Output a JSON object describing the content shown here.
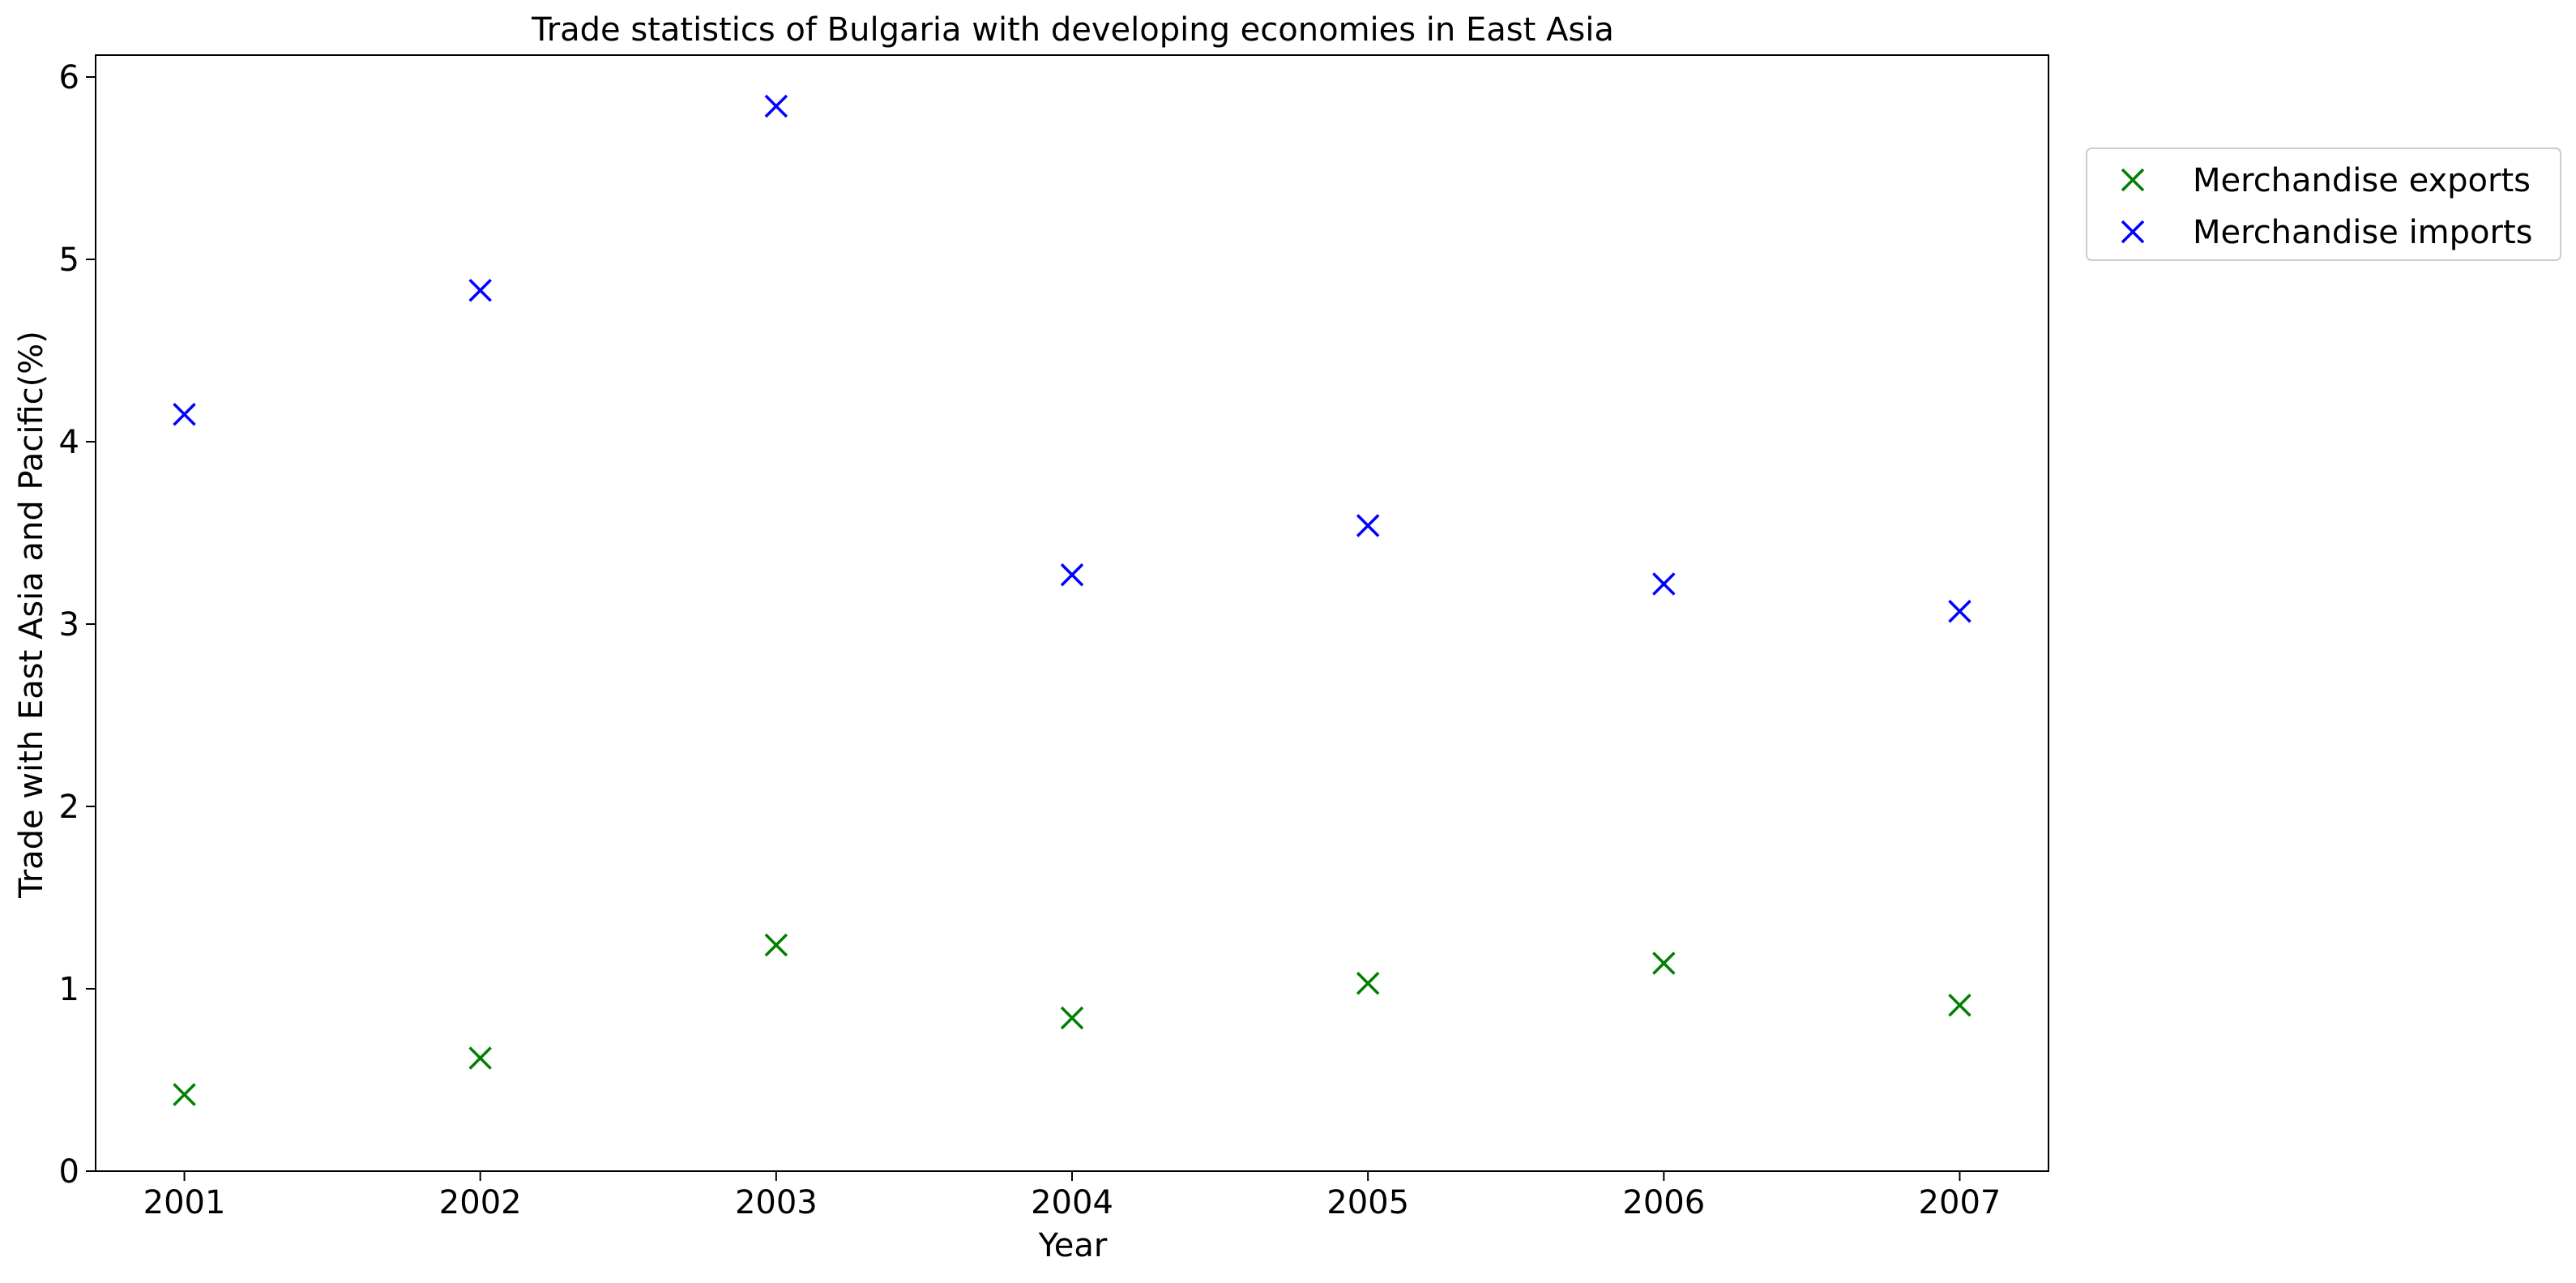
{
  "chart_data": {
    "type": "scatter",
    "title": "Trade statistics of Bulgaria with developing economies in East Asia",
    "xlabel": "Year",
    "ylabel": "Trade with East Asia and Pacific(%)",
    "x": [
      "2001",
      "2002",
      "2003",
      "2004",
      "2005",
      "2006",
      "2007"
    ],
    "xlim": [
      2000.7,
      2007.3
    ],
    "ylim": [
      0,
      6.12
    ],
    "yticks": [
      0,
      1,
      2,
      3,
      4,
      5,
      6
    ],
    "grid": false,
    "legend_position": "outside-top-right",
    "marker": "x",
    "series": [
      {
        "name": "Merchandise exports",
        "color": "#008000",
        "values": [
          0.42,
          0.62,
          1.24,
          0.84,
          1.03,
          1.14,
          0.91
        ]
      },
      {
        "name": "Merchandise imports",
        "color": "#0000ff",
        "values": [
          4.15,
          4.83,
          5.84,
          3.27,
          3.54,
          3.22,
          3.07
        ]
      }
    ]
  }
}
